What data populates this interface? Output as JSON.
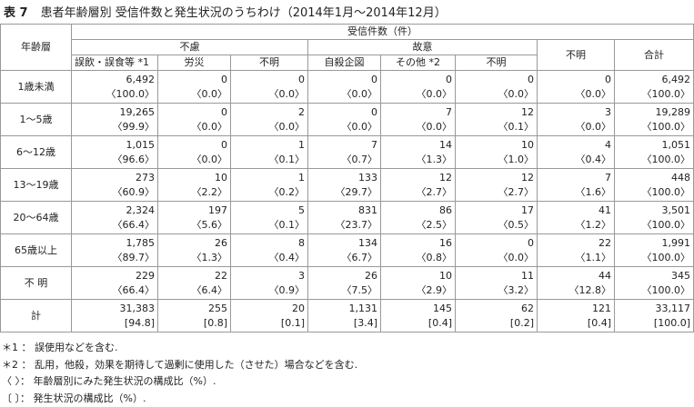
{
  "header": {
    "label": "表 7",
    "title": "患者年齢層別 受信件数と発生状況のうちわけ（2014年1月～2014年12月）"
  },
  "table": {
    "age_header": "年齢層",
    "count_header": "受信件数（件）",
    "groups": [
      "不慮",
      "故意",
      "不明",
      "合計"
    ],
    "subheaders": [
      "誤飲・誤食等 *1",
      "労災",
      "不明",
      "自殺企図",
      "その他 *2",
      "不明"
    ],
    "rows": [
      {
        "label": "1歳未満",
        "counts": [
          "6,492",
          "0",
          "0",
          "0",
          "0",
          "0",
          "0",
          "6,492"
        ],
        "ratios": [
          "〈100.0〉",
          "〈0.0〉",
          "〈0.0〉",
          "〈0.0〉",
          "〈0.0〉",
          "〈0.0〉",
          "〈0.0〉",
          "〈100.0〉"
        ]
      },
      {
        "label": "1～5歳",
        "counts": [
          "19,265",
          "0",
          "2",
          "0",
          "7",
          "12",
          "3",
          "19,289"
        ],
        "ratios": [
          "〈99.9〉",
          "〈0.0〉",
          "〈0.0〉",
          "〈0.0〉",
          "〈0.0〉",
          "〈0.1〉",
          "〈0.0〉",
          "〈100.0〉"
        ]
      },
      {
        "label": "6～12歳",
        "counts": [
          "1,015",
          "0",
          "1",
          "7",
          "14",
          "10",
          "4",
          "1,051"
        ],
        "ratios": [
          "〈96.6〉",
          "〈0.0〉",
          "〈0.1〉",
          "〈0.7〉",
          "〈1.3〉",
          "〈1.0〉",
          "〈0.4〉",
          "〈100.0〉"
        ]
      },
      {
        "label": "13～19歳",
        "counts": [
          "273",
          "10",
          "1",
          "133",
          "12",
          "12",
          "7",
          "448"
        ],
        "ratios": [
          "〈60.9〉",
          "〈2.2〉",
          "〈0.2〉",
          "〈29.7〉",
          "〈2.7〉",
          "〈2.7〉",
          "〈1.6〉",
          "〈100.0〉"
        ]
      },
      {
        "label": "20～64歳",
        "counts": [
          "2,324",
          "197",
          "5",
          "831",
          "86",
          "17",
          "41",
          "3,501"
        ],
        "ratios": [
          "〈66.4〉",
          "〈5.6〉",
          "〈0.1〉",
          "〈23.7〉",
          "〈2.5〉",
          "〈0.5〉",
          "〈1.2〉",
          "〈100.0〉"
        ]
      },
      {
        "label": "65歳以上",
        "counts": [
          "1,785",
          "26",
          "8",
          "134",
          "16",
          "0",
          "22",
          "1,991"
        ],
        "ratios": [
          "〈89.7〉",
          "〈1.3〉",
          "〈0.4〉",
          "〈6.7〉",
          "〈0.8〉",
          "〈0.0〉",
          "〈1.1〉",
          "〈100.0〉"
        ]
      },
      {
        "label": "不 明",
        "counts": [
          "229",
          "22",
          "3",
          "26",
          "10",
          "11",
          "44",
          "345"
        ],
        "ratios": [
          "〈66.4〉",
          "〈6.4〉",
          "〈0.9〉",
          "〈7.5〉",
          "〈2.9〉",
          "〈3.2〉",
          "〈12.8〉",
          "〈100.0〉"
        ]
      },
      {
        "label": "計",
        "counts": [
          "31,383",
          "255",
          "20",
          "1,131",
          "145",
          "62",
          "121",
          "33,117"
        ],
        "ratios": [
          "[94.8]",
          "[0.8]",
          "[0.1]",
          "[3.4]",
          "[0.4]",
          "[0.2]",
          "[0.4]",
          "[100.0]"
        ]
      }
    ]
  },
  "notes": [
    "＊1 ： 誤使用などを含む.",
    "＊2 ： 乱用，他殺，効果を期待して過剰に使用した（させた）場合などを含む.",
    "〈 〉： 年齢層別にみた発生状況の構成比（%）.",
    "〔 〕： 発生状況の構成比（%）."
  ]
}
